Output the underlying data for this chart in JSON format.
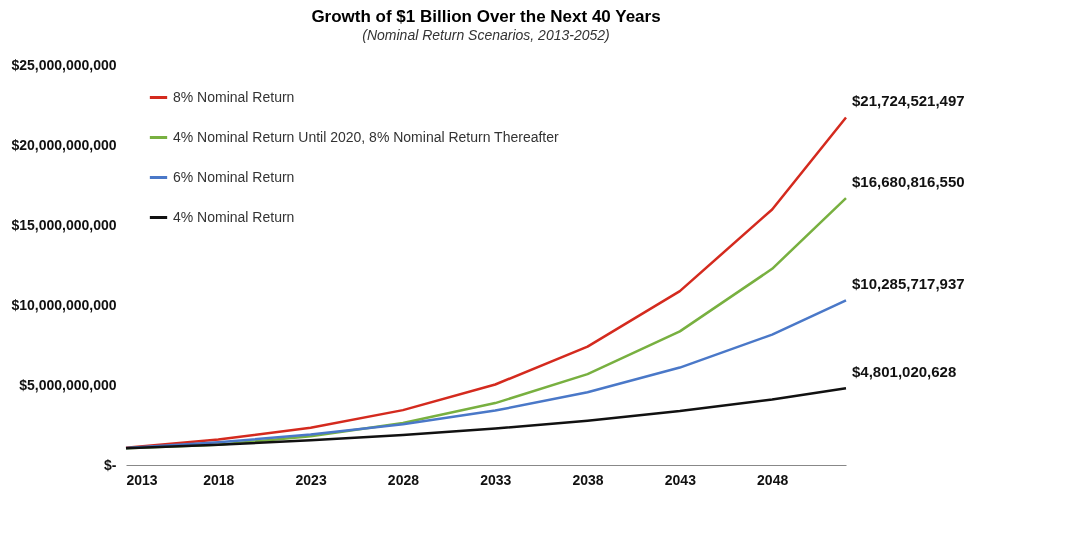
{
  "chart_data": {
    "type": "line",
    "title": "Growth of $1 Billion Over the Next 40 Years",
    "subtitle": "(Nominal Return Scenarios, 2013-2052)",
    "x": [
      2013,
      2018,
      2023,
      2028,
      2033,
      2038,
      2043,
      2048,
      2052
    ],
    "series": [
      {
        "name": "8% Nominal Return",
        "color": "#d42a1e",
        "values": [
          1080000000,
          1590000000,
          2330000000,
          3430000000,
          5030000000,
          7400000000,
          10870000000,
          15970000000,
          21724521497
        ],
        "value_labels": [
          null,
          null,
          null,
          null,
          null,
          null,
          null,
          null,
          "$21,724,521,497"
        ]
      },
      {
        "name": "4% Nominal Return Until 2020, 8% Nominal Return Thereafter",
        "color": "#78b040",
        "values": [
          1040000000,
          1270000000,
          1790000000,
          2630000000,
          3870000000,
          5680000000,
          8350000000,
          12260000000,
          16680816550
        ],
        "value_labels": [
          null,
          null,
          null,
          null,
          null,
          null,
          null,
          null,
          "$16,680,816,550"
        ]
      },
      {
        "name": "6% Nominal Return",
        "color": "#4a78c8",
        "values": [
          1060000000,
          1420000000,
          1900000000,
          2540000000,
          3400000000,
          4550000000,
          6090000000,
          8150000000,
          10285717937
        ],
        "value_labels": [
          null,
          null,
          null,
          null,
          null,
          null,
          null,
          null,
          "$10,285,717,937"
        ]
      },
      {
        "name": "4% Nominal Return",
        "color": "#111111",
        "values": [
          1040000000,
          1270000000,
          1540000000,
          1870000000,
          2280000000,
          2770000000,
          3370000000,
          4100000000,
          4801020628
        ],
        "value_labels": [
          null,
          null,
          null,
          null,
          null,
          null,
          null,
          null,
          "$4,801,020,628"
        ]
      }
    ],
    "xlim": [
      2013,
      2052
    ],
    "xticks": [
      2013,
      2018,
      2023,
      2028,
      2033,
      2038,
      2043,
      2048
    ],
    "ylim": [
      0,
      25000000000
    ],
    "yticks": [
      {
        "value": 0,
        "label": "$-"
      },
      {
        "value": 5000000000,
        "label": "$5,000,000,000"
      },
      {
        "value": 10000000000,
        "label": "$10,000,000,000"
      },
      {
        "value": 15000000000,
        "label": "$15,000,000,000"
      },
      {
        "value": 20000000000,
        "label": "$20,000,000,000"
      },
      {
        "value": 25000000000,
        "label": "$25,000,000,000"
      }
    ],
    "grid": false,
    "legend": "top left",
    "marker": "none",
    "line_style": "solid"
  }
}
